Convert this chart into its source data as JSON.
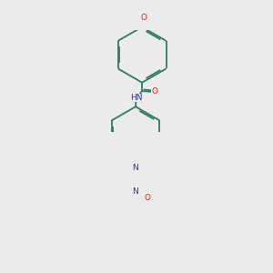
{
  "background_color": "#ebebeb",
  "bond_color": "#2d7a6a",
  "nitrogen_color": "#2233bb",
  "oxygen_color": "#cc2222",
  "lw": 1.3,
  "dbo": 0.018,
  "figsize": [
    3.0,
    3.0
  ],
  "dpi": 100,
  "r_ring": 0.3,
  "xlim": [
    -0.05,
    1.05
  ],
  "ylim": [
    -0.05,
    1.05
  ]
}
